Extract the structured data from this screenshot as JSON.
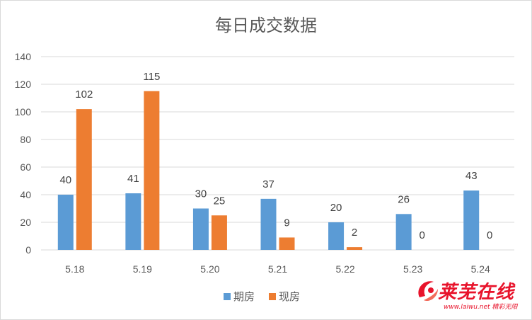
{
  "chart_data": {
    "type": "bar",
    "title": "每日成交数据",
    "categories": [
      "5.18",
      "5.19",
      "5.20",
      "5.21",
      "5.22",
      "5.23",
      "5.24"
    ],
    "series": [
      {
        "name": "期房",
        "color": "#5b9bd5",
        "values": [
          40,
          41,
          30,
          37,
          20,
          26,
          43
        ]
      },
      {
        "name": "现房",
        "color": "#ed7d31",
        "values": [
          102,
          115,
          25,
          9,
          2,
          0,
          0
        ]
      }
    ],
    "ylim": [
      0,
      140
    ],
    "yticks": [
      0,
      20,
      40,
      60,
      80,
      100,
      120,
      140
    ],
    "grid": true,
    "legend_position": "bottom",
    "data_labels": true
  },
  "watermark": {
    "text": "莱芜在线",
    "subtext": "www.laiwu.net 精彩无限"
  }
}
